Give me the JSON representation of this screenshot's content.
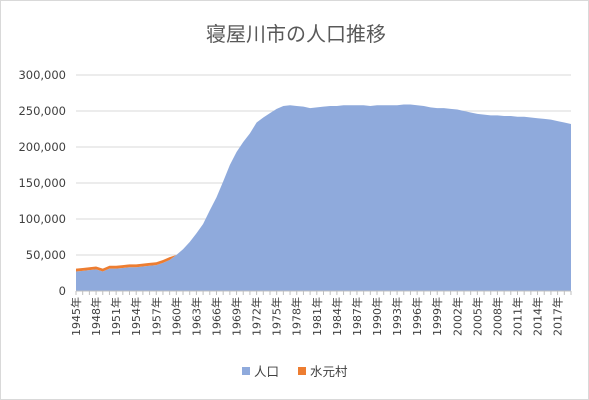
{
  "chart_data": {
    "type": "area",
    "stacked": true,
    "title": "寝屋川市の人口推移",
    "xlabel": "",
    "ylabel": "",
    "ylim": [
      0,
      300000
    ],
    "yticks": [
      0,
      50000,
      100000,
      150000,
      200000,
      250000,
      300000
    ],
    "ytick_labels": [
      "0",
      "50,000",
      "100,000",
      "150,000",
      "200,000",
      "250,000",
      "300,000"
    ],
    "grid": true,
    "legend_position": "bottom",
    "x_tick_labels": [
      "1945年",
      "1948年",
      "1951年",
      "1954年",
      "1957年",
      "1960年",
      "1963年",
      "1966年",
      "1969年",
      "1972年",
      "1975年",
      "1978年",
      "1981年",
      "1984年",
      "1987年",
      "1990年",
      "1993年",
      "1996年",
      "1999年",
      "2002年",
      "2005年",
      "2008年",
      "2011年",
      "2014年",
      "2017年"
    ],
    "x": [
      1945,
      1946,
      1947,
      1948,
      1949,
      1950,
      1951,
      1952,
      1953,
      1954,
      1955,
      1956,
      1957,
      1958,
      1959,
      1960,
      1961,
      1962,
      1963,
      1964,
      1965,
      1966,
      1967,
      1968,
      1969,
      1970,
      1971,
      1972,
      1973,
      1974,
      1975,
      1976,
      1977,
      1978,
      1979,
      1980,
      1981,
      1982,
      1983,
      1984,
      1985,
      1986,
      1987,
      1988,
      1989,
      1990,
      1991,
      1992,
      1993,
      1994,
      1995,
      1996,
      1997,
      1998,
      1999,
      2000,
      2001,
      2002,
      2003,
      2004,
      2005,
      2006,
      2007,
      2008,
      2009,
      2010,
      2011,
      2012,
      2013,
      2014,
      2015,
      2016,
      2017,
      2018,
      2019
    ],
    "series": [
      {
        "name": "人口",
        "color": "#8faadc",
        "values": [
          27000,
          28000,
          29000,
          30000,
          27000,
          31000,
          31000,
          32000,
          33000,
          33000,
          34000,
          35000,
          36000,
          39000,
          43000,
          50000,
          58000,
          68000,
          80000,
          93000,
          112000,
          130000,
          152000,
          175000,
          193000,
          207000,
          219000,
          234000,
          241000,
          247000,
          253000,
          257000,
          258000,
          257000,
          256000,
          254000,
          255000,
          256000,
          257000,
          257000,
          258000,
          258000,
          258000,
          258000,
          257000,
          258000,
          258000,
          258000,
          258000,
          259000,
          259000,
          258000,
          257000,
          255000,
          254000,
          254000,
          253000,
          252000,
          250000,
          248000,
          246000,
          245000,
          244000,
          244000,
          243000,
          243000,
          242000,
          242000,
          241000,
          240000,
          239000,
          238000,
          236000,
          234000,
          232000
        ]
      },
      {
        "name": "水元村",
        "color": "#ed7d31",
        "values": [
          4000,
          4000,
          4000,
          4000,
          4000,
          4000,
          4000,
          4000,
          4000,
          4000,
          4000,
          4000,
          4000,
          4000,
          4000,
          0,
          0,
          0,
          0,
          0,
          0,
          0,
          0,
          0,
          0,
          0,
          0,
          0,
          0,
          0,
          0,
          0,
          0,
          0,
          0,
          0,
          0,
          0,
          0,
          0,
          0,
          0,
          0,
          0,
          0,
          0,
          0,
          0,
          0,
          0,
          0,
          0,
          0,
          0,
          0,
          0,
          0,
          0,
          0,
          0,
          0,
          0,
          0,
          0,
          0,
          0,
          0,
          0,
          0,
          0,
          0,
          0,
          0,
          0,
          0
        ]
      }
    ]
  }
}
